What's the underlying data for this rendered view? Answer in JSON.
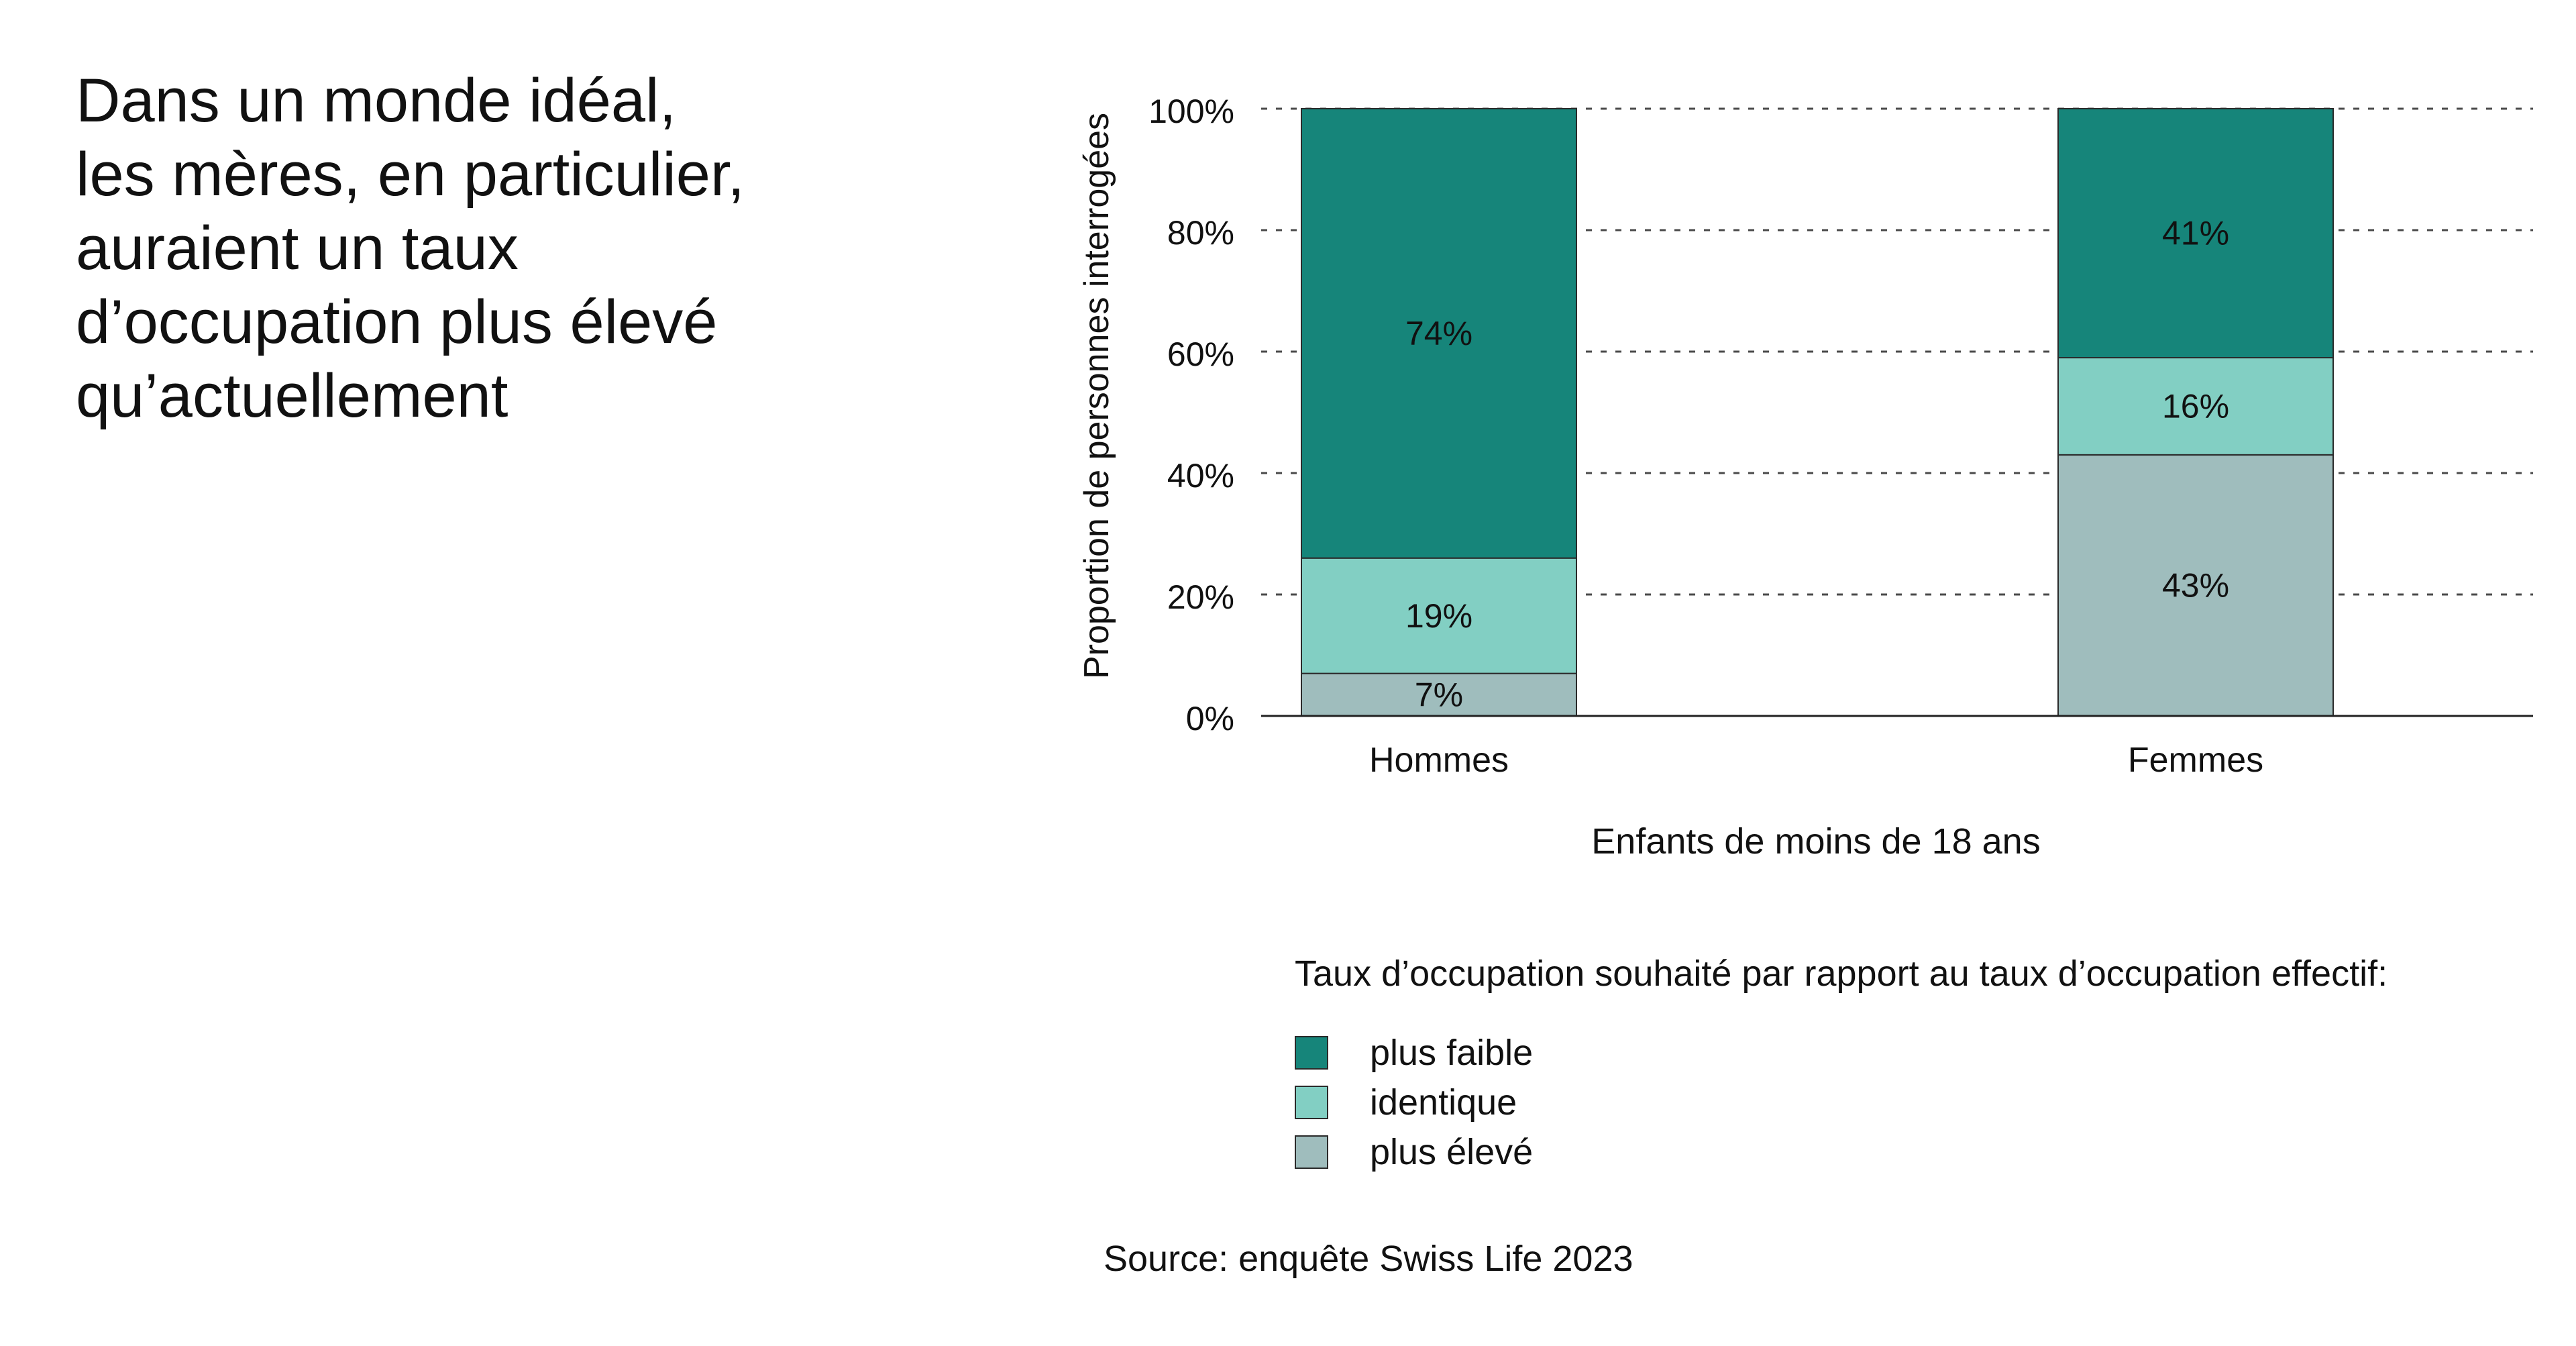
{
  "title_lines": [
    "Dans un monde idéal,",
    "les mères, en particulier,",
    "auraient un taux",
    "d’occupation plus élevé",
    "qu’actuellement"
  ],
  "chart_data": {
    "type": "bar",
    "stacked": true,
    "categories": [
      "Hommes",
      "Femmes"
    ],
    "xlabel": "Enfants de moins de 18 ans",
    "ylabel": "Proportion de personnes interrogées",
    "ylim": [
      0,
      100
    ],
    "yticks": [
      "0%",
      "20%",
      "40%",
      "60%",
      "80%",
      "100%"
    ],
    "grid": "dashed horizontal",
    "series": [
      {
        "name": "plus élevé",
        "color": "#9fbdbd",
        "values": [
          7,
          43
        ],
        "labels": [
          "7%",
          "43%"
        ]
      },
      {
        "name": "identique",
        "color": "#82cfc3",
        "values": [
          19,
          16
        ],
        "labels": [
          "19%",
          "16%"
        ]
      },
      {
        "name": "plus faible",
        "color": "#16857a",
        "values": [
          74,
          41
        ],
        "labels": [
          "74%",
          "41%"
        ]
      }
    ]
  },
  "legend": {
    "title": "Taux d’occupation souhaité par rapport au taux d’occupation effectif:",
    "items": [
      {
        "label": "plus faible",
        "color": "#16857a"
      },
      {
        "label": "identique",
        "color": "#82cfc3"
      },
      {
        "label": "plus élevé",
        "color": "#9fbdbd"
      }
    ]
  },
  "source": "Source: enquête Swiss Life 2023"
}
